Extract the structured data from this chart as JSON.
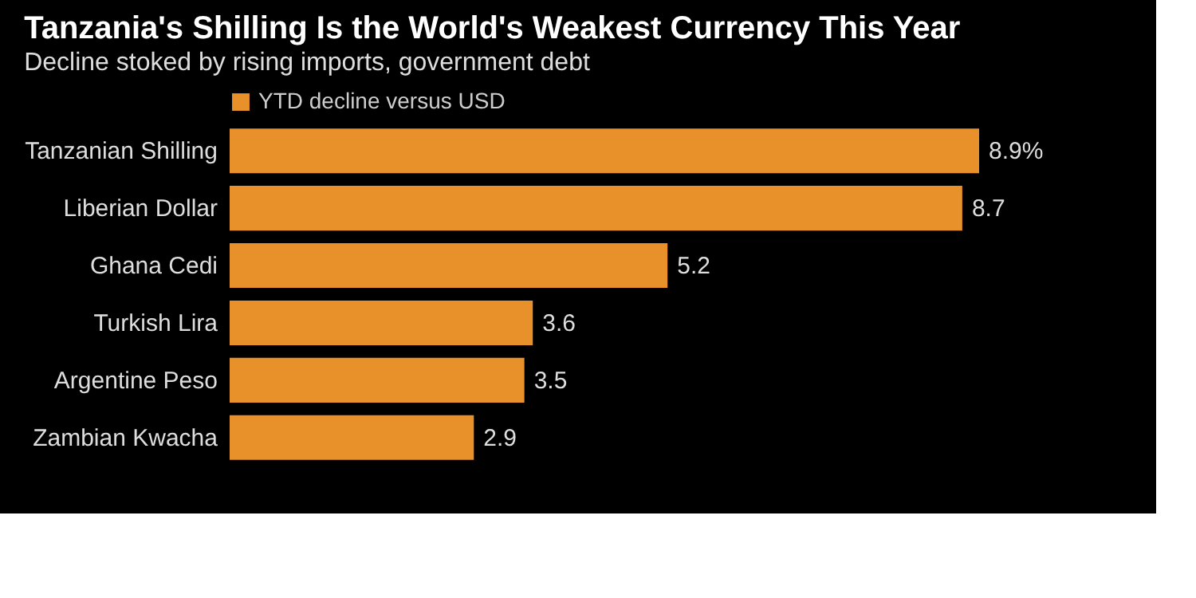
{
  "chart_data": {
    "type": "bar",
    "orientation": "horizontal",
    "title": "Tanzania's Shilling Is the World's Weakest Currency This Year",
    "subtitle": "Decline stoked by rising imports, government debt",
    "categories": [
      "Tanzanian Shilling",
      "Liberian Dollar",
      "Ghana Cedi",
      "Turkish Lira",
      "Argentine Peso",
      "Zambian Kwacha"
    ],
    "series": [
      {
        "name": "YTD decline versus USD",
        "color": "#e8912a",
        "values": [
          8.9,
          8.7,
          5.2,
          3.6,
          3.5,
          2.9
        ],
        "value_labels": [
          "8.9%",
          "8.7",
          "5.2",
          "3.6",
          "3.5",
          "2.9"
        ]
      }
    ],
    "legend": "top left",
    "grid": false,
    "tick_labels": "y"
  }
}
